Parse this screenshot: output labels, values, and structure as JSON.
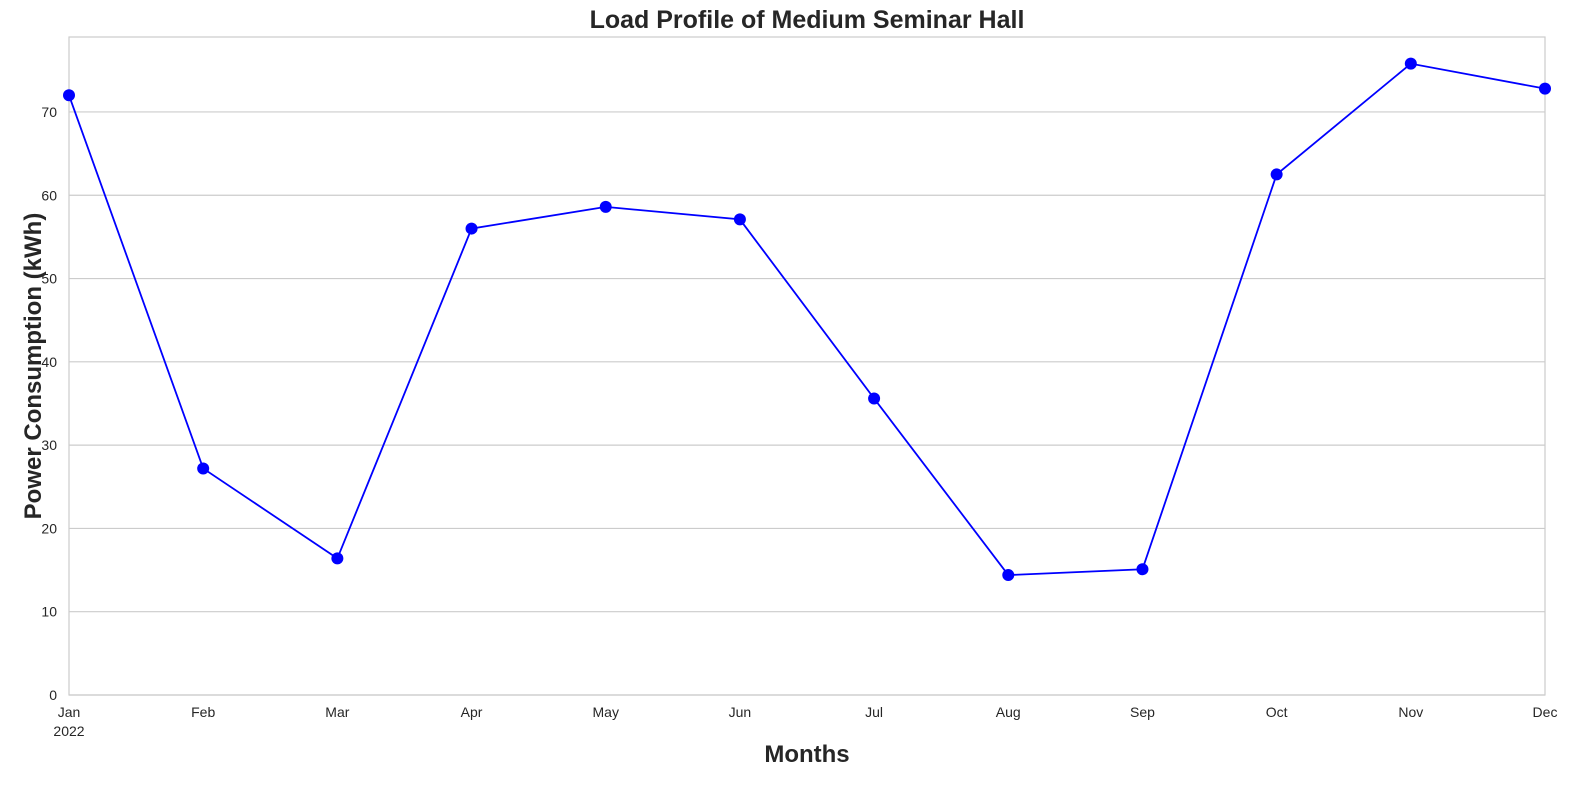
{
  "chart_data": {
    "type": "line",
    "title": "Load Profile of Medium Seminar Hall",
    "xlabel": "Months",
    "ylabel": "Power Consumption (kWh)",
    "categories": [
      "Jan",
      "Feb",
      "Mar",
      "Apr",
      "May",
      "Jun",
      "Jul",
      "Aug",
      "Sep",
      "Oct",
      "Nov",
      "Dec"
    ],
    "year_label": "2022",
    "series": [
      {
        "color": "#0000ff",
        "marker": "circle",
        "values": [
          72.0,
          27.2,
          16.4,
          56.0,
          58.6,
          57.1,
          35.6,
          14.4,
          15.1,
          62.5,
          75.8,
          72.8
        ]
      }
    ],
    "yticks": [
      0,
      10,
      20,
      30,
      40,
      50,
      60,
      70
    ],
    "ylim": [
      0,
      79
    ],
    "grid": "horizontal",
    "legend": "none"
  }
}
